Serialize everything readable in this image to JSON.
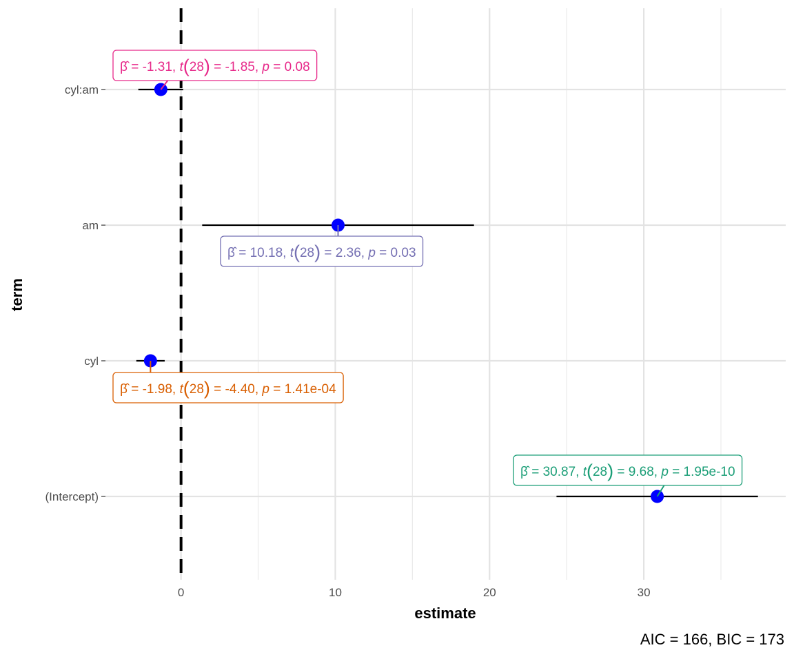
{
  "chart_data": {
    "type": "scatter",
    "subtype": "coefficient-plot",
    "xlabel": "estimate",
    "ylabel": "term",
    "xlim": [
      -4.9,
      39.2
    ],
    "x_ticks": [
      0,
      10,
      20,
      30
    ],
    "x_tick_labels": [
      "0",
      "10",
      "20",
      "30"
    ],
    "x_minor_ticks": [
      5,
      15,
      25,
      35
    ],
    "reference_line": 0,
    "caption": "AIC = 166, BIC = 173",
    "terms": [
      {
        "name": "cyl:am",
        "estimate": -1.31,
        "conf_low": -2.77,
        "conf_high": 0.14,
        "color": "#e7298a",
        "label": {
          "beta": "-1.31",
          "df": "28",
          "t": "-1.85",
          "p": "0.08",
          "placement": "above"
        }
      },
      {
        "name": "am",
        "estimate": 10.18,
        "conf_low": 1.37,
        "conf_high": 18.99,
        "color": "#7570b3",
        "label": {
          "beta": "10.18",
          "df": "28",
          "t": "2.36",
          "p": "0.03",
          "placement": "below"
        }
      },
      {
        "name": "cyl",
        "estimate": -1.98,
        "conf_low": -2.9,
        "conf_high": -1.06,
        "color": "#d95f02",
        "label": {
          "beta": "-1.98",
          "df": "28",
          "t": "-4.40",
          "p": "1.41e-04",
          "placement": "below"
        }
      },
      {
        "name": "(Intercept)",
        "estimate": 30.87,
        "conf_low": 24.34,
        "conf_high": 37.4,
        "color": "#1b9e77",
        "label": {
          "beta": "30.87",
          "df": "28",
          "t": "9.68",
          "p": "1.95e-10",
          "placement": "above"
        }
      }
    ],
    "point_color": "#0000ff",
    "errorbar_color": "#000000",
    "grid": true
  }
}
